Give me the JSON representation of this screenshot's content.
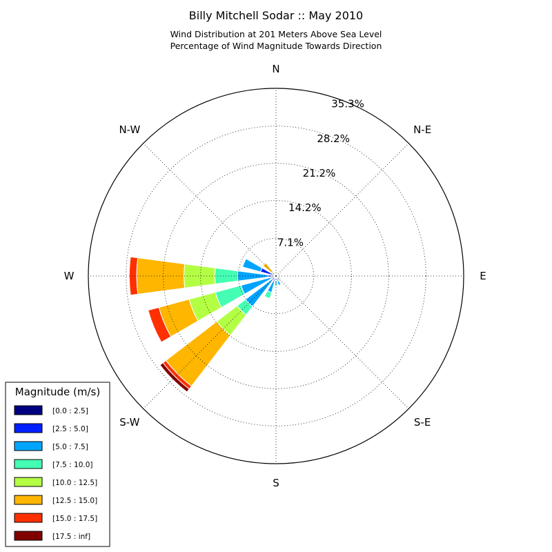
{
  "chart_data": {
    "type": "windrose",
    "title": "Billy Mitchell Sodar :: May 2010",
    "subtitle_line1": "Wind Distribution at 201 Meters Above Sea Level",
    "subtitle_line2": "Percentage of Wind Magnitude Towards Direction",
    "directions": [
      "N",
      "N-E",
      "E",
      "S-E",
      "S",
      "S-W",
      "W",
      "N-W"
    ],
    "radial_ticks": [
      7.1,
      14.2,
      21.2,
      28.2,
      35.3
    ],
    "radial_tick_labels": [
      "7.1%",
      "14.2%",
      "21.2%",
      "28.2%",
      "35.3%"
    ],
    "r_max": 35.3,
    "grid": true,
    "legend": {
      "title": "Magnitude (m/s)",
      "placement": "bottom-left",
      "labels": [
        "[0.0 : 2.5]",
        "[2.5 : 5.0]",
        "[5.0 : 7.5]",
        "[7.5 : 10.0]",
        "[10.0 : 12.5]",
        "[12.5 : 15.0]",
        "[15.0 : 17.5]",
        "[17.5 : inf]"
      ]
    },
    "bin_colors": [
      "#000080",
      "#0020ff",
      "#00a4ff",
      "#44ffb3",
      "#b3ff44",
      "#ffb600",
      "#ff3000",
      "#800000"
    ],
    "sectors_deg": [
      0,
      22.5,
      45,
      67.5,
      90,
      112.5,
      135,
      157.5,
      180,
      202.5,
      225,
      247.5,
      270,
      292.5,
      315,
      337.5
    ],
    "cumulative": [
      [
        0.1,
        0.3,
        0.3,
        0.3,
        0.3,
        0.3,
        0.3,
        0.3
      ],
      [
        0.1,
        0.3,
        0.3,
        0.3,
        0.3,
        0.3,
        0.3,
        0.3
      ],
      [
        0.2,
        0.4,
        0.4,
        0.4,
        0.4,
        0.4,
        0.4,
        0.4
      ],
      [
        0.2,
        0.6,
        0.8,
        0.8,
        0.8,
        0.8,
        0.8,
        0.8
      ],
      [
        0.2,
        0.6,
        0.8,
        0.8,
        0.8,
        0.8,
        0.8,
        0.8
      ],
      [
        0.2,
        0.8,
        1.0,
        1.0,
        1.0,
        1.0,
        1.0,
        1.0
      ],
      [
        0.2,
        0.6,
        1.0,
        1.0,
        1.0,
        1.0,
        1.0,
        1.0
      ],
      [
        0.2,
        1.0,
        1.8,
        2.0,
        2.0,
        2.0,
        2.0,
        2.0
      ],
      [
        0.2,
        0.8,
        1.6,
        1.9,
        1.9,
        1.9,
        1.9,
        1.9
      ],
      [
        0.2,
        1.0,
        3.2,
        4.4,
        4.4,
        4.4,
        4.4,
        4.4
      ],
      [
        0.3,
        1.0,
        7.2,
        9.2,
        14.1,
        26.1,
        26.8,
        27.5
      ],
      [
        0.3,
        1.0,
        6.8,
        11.8,
        16.9,
        22.8,
        24.9,
        24.9
      ],
      [
        0.3,
        1.5,
        7.2,
        11.5,
        17.3,
        26.2,
        27.6,
        27.6
      ],
      [
        0.3,
        3.0,
        6.5,
        6.5,
        6.5,
        6.5,
        6.5,
        6.5
      ],
      [
        0.1,
        0.5,
        0.7,
        0.7,
        1.1,
        3.1,
        3.1,
        3.1
      ],
      [
        0.1,
        0.3,
        0.3,
        0.3,
        0.3,
        0.3,
        0.3,
        0.3
      ]
    ]
  }
}
